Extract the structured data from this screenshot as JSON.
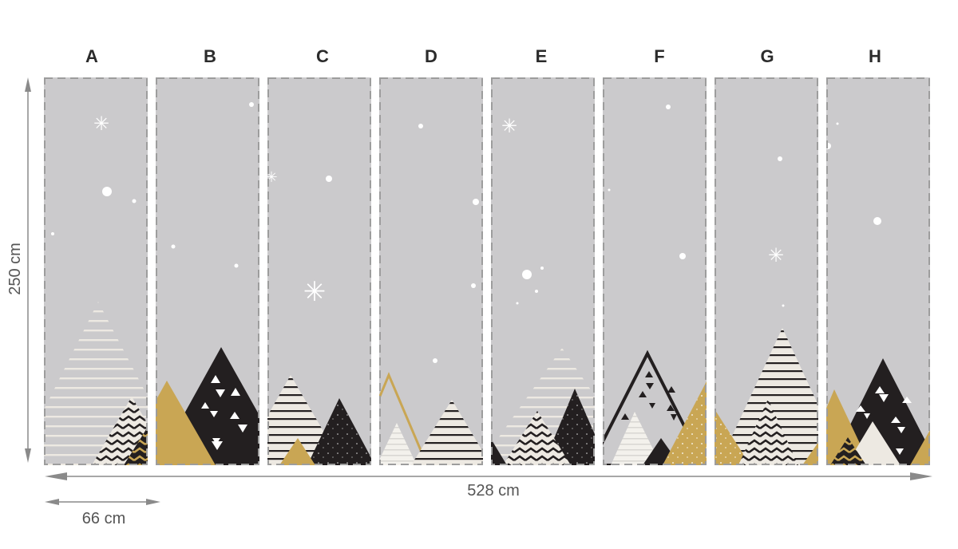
{
  "panels": [
    {
      "label": "A"
    },
    {
      "label": "B"
    },
    {
      "label": "C"
    },
    {
      "label": "D"
    },
    {
      "label": "E"
    },
    {
      "label": "F"
    },
    {
      "label": "G"
    },
    {
      "label": "H"
    }
  ],
  "dimensions": {
    "height": "250 cm",
    "total_width": "528 cm",
    "panel_width": "66 cm"
  },
  "colors": {
    "background": "#cbcacc",
    "gold": "#c9a654",
    "black": "#231f20",
    "cream": "#ede9e2",
    "arrow": "#8a8a8a"
  }
}
